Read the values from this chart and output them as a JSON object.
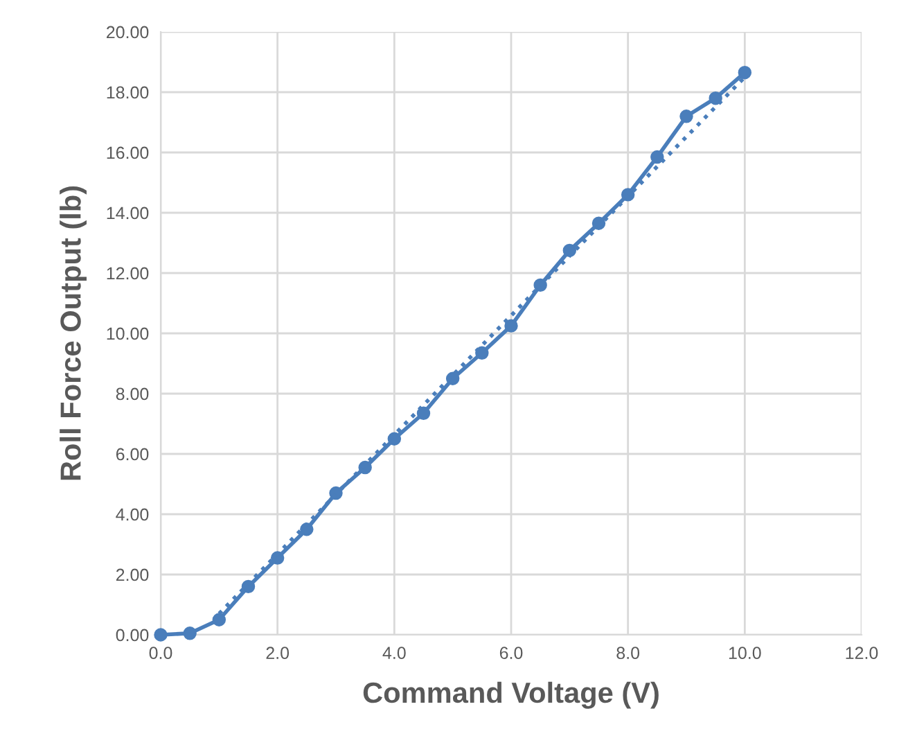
{
  "chart_data": {
    "type": "line",
    "xlabel": "Command Voltage (V)",
    "ylabel": "Roll Force Output (lb)",
    "x": [
      0,
      0.5,
      1,
      1.5,
      2,
      2.5,
      3,
      3.5,
      4,
      4.5,
      5,
      5.5,
      6,
      6.5,
      7,
      7.5,
      8,
      8.5,
      9,
      9.5,
      10
    ],
    "series": [
      {
        "color": "#4a7ebb",
        "marker": "circle",
        "line_style": "solid",
        "values": [
          0,
          0.05,
          0.5,
          1.6,
          2.55,
          3.5,
          4.7,
          5.55,
          6.5,
          7.35,
          8.5,
          9.35,
          10.25,
          11.6,
          12.75,
          13.65,
          14.6,
          15.85,
          17.2,
          17.8,
          18.65
        ]
      },
      {
        "type": "line",
        "color": "#4a7ebb",
        "marker": "none",
        "line_style": "dotted",
        "x": [
          1,
          10
        ],
        "values": [
          0.7,
          18.5
        ]
      }
    ],
    "xlim": [
      0,
      12
    ],
    "ylim": [
      0,
      20
    ],
    "xticks": [
      {
        "value": 0,
        "label": "0.0"
      },
      {
        "value": 2,
        "label": "2.0"
      },
      {
        "value": 4,
        "label": "4.0"
      },
      {
        "value": 6,
        "label": "6.0"
      },
      {
        "value": 8,
        "label": "8.0"
      },
      {
        "value": 10,
        "label": "10.0"
      },
      {
        "value": 12,
        "label": "12.0"
      }
    ],
    "yticks": [
      {
        "value": 0,
        "label": "0.00"
      },
      {
        "value": 2,
        "label": "2.00"
      },
      {
        "value": 4,
        "label": "4.00"
      },
      {
        "value": 6,
        "label": "6.00"
      },
      {
        "value": 8,
        "label": "8.00"
      },
      {
        "value": 10,
        "label": "10.00"
      },
      {
        "value": 12,
        "label": "12.00"
      },
      {
        "value": 14,
        "label": "14.00"
      },
      {
        "value": 16,
        "label": "16.00"
      },
      {
        "value": 18,
        "label": "18.00"
      },
      {
        "value": 20,
        "label": "20.00"
      }
    ],
    "grid": true,
    "legend": false
  }
}
